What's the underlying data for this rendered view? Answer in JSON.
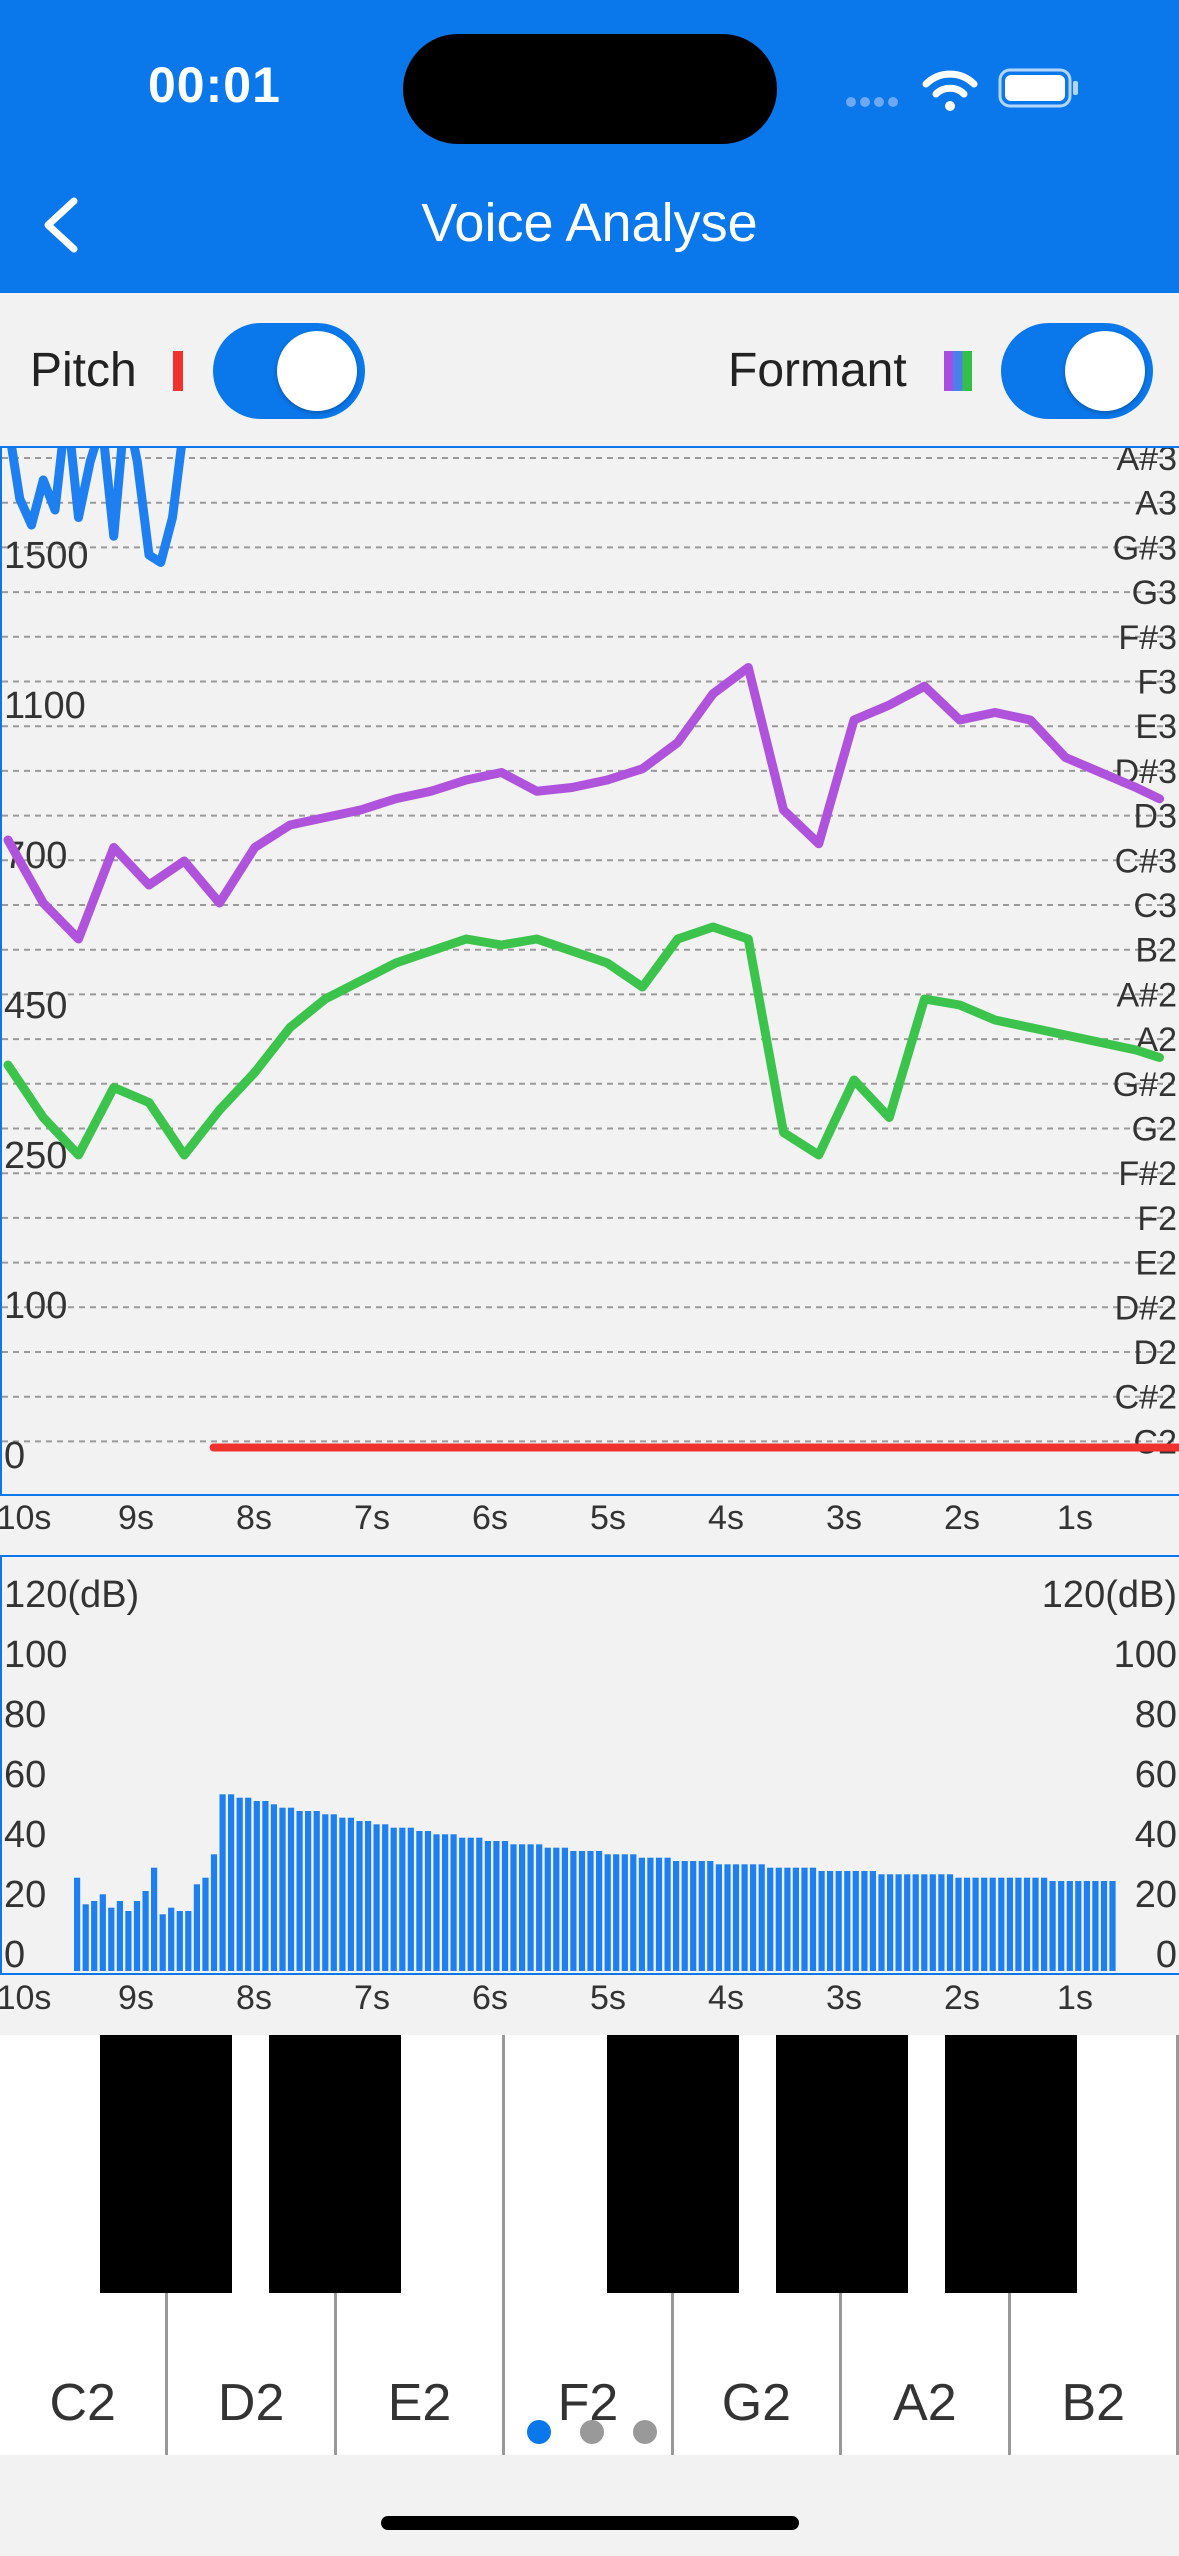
{
  "status_bar": {
    "time": "00:01"
  },
  "nav": {
    "title": "Voice Analyse",
    "back_icon": "chevron-left-icon"
  },
  "controls": {
    "pitch_label": "Pitch",
    "pitch_enabled": true,
    "pitch_color": "#f0322e",
    "formant_label": "Formant",
    "formant_enabled": true,
    "formant_colors": [
      "#a74ee0",
      "#4a80ea",
      "#34c048"
    ]
  },
  "colors": {
    "accent": "#0a77ea",
    "purple": "#b053dc",
    "green": "#3cc34c",
    "blue_line": "#1e7ff0",
    "bar": "#1e7ff0"
  },
  "chart_data": [
    {
      "type": "line",
      "y_labels_left": [
        "1500",
        "1100",
        "700",
        "450",
        "250",
        "100",
        "0"
      ],
      "note_labels_right": [
        "A#3",
        "A3",
        "G#3",
        "G3",
        "F#3",
        "F3",
        "E3",
        "D#3",
        "D3",
        "C#3",
        "C3",
        "B2",
        "A#2",
        "A2",
        "G#2",
        "G2",
        "F#2",
        "F2",
        "E2",
        "D#2",
        "D2",
        "C#2",
        "C2"
      ],
      "x_labels": [
        "10s",
        "9s",
        "8s",
        "7s",
        "6s",
        "5s",
        "4s",
        "3s",
        "2s",
        "1s"
      ],
      "series": [
        {
          "color": "#1e7ff0",
          "x": [
            0,
            0.1,
            0.2,
            0.3,
            0.4,
            0.5,
            0.6,
            0.7,
            0.8,
            0.9,
            1.0,
            1.1,
            1.2,
            1.3,
            1.4,
            1.5,
            1.6
          ],
          "y": [
            1850,
            1650,
            1580,
            1700,
            1620,
            1900,
            1600,
            1750,
            1850,
            1550,
            1900,
            1750,
            1500,
            1480,
            1600,
            1850,
            1900
          ]
        },
        {
          "color": "#b053dc",
          "x": [
            0,
            0.3,
            0.6,
            0.9,
            1.2,
            1.5,
            1.8,
            2.1,
            2.4,
            2.7,
            3.0,
            3.3,
            3.6,
            3.9,
            4.2,
            4.5,
            4.8,
            5.1,
            5.4,
            5.7,
            6.0,
            6.3,
            6.6,
            6.9,
            7.2,
            7.5,
            7.8,
            8.1,
            8.4,
            8.7,
            9.0,
            9.3,
            9.6,
            9.8
          ],
          "y": [
            740,
            620,
            560,
            720,
            650,
            690,
            620,
            720,
            780,
            800,
            820,
            850,
            870,
            900,
            920,
            870,
            880,
            900,
            930,
            1000,
            1130,
            1200,
            820,
            730,
            1060,
            1100,
            1150,
            1060,
            1080,
            1060,
            960,
            920,
            880,
            850
          ]
        },
        {
          "color": "#3cc34c",
          "x": [
            0,
            0.3,
            0.6,
            0.9,
            1.2,
            1.5,
            1.8,
            2.1,
            2.4,
            2.7,
            3.0,
            3.3,
            3.6,
            3.9,
            4.2,
            4.5,
            4.8,
            5.1,
            5.4,
            5.7,
            6.0,
            6.3,
            6.6,
            6.9,
            7.2,
            7.5,
            7.8,
            8.1,
            8.4,
            8.7,
            9.0,
            9.3,
            9.6,
            9.8
          ],
          "y": [
            370,
            300,
            250,
            340,
            320,
            250,
            310,
            360,
            420,
            460,
            490,
            520,
            540,
            560,
            550,
            560,
            540,
            520,
            480,
            560,
            580,
            560,
            280,
            250,
            350,
            300,
            460,
            450,
            430,
            420,
            410,
            400,
            390,
            380
          ]
        },
        {
          "color": "#f0322e",
          "x": [
            1.75,
            10.0
          ],
          "y": [
            5,
            5
          ]
        }
      ]
    },
    {
      "type": "bar",
      "y_labels_left": [
        "120(dB)",
        "100",
        "80",
        "60",
        "40",
        "20",
        "0"
      ],
      "y_labels_right": [
        "120(dB)",
        "100",
        "80",
        "60",
        "40",
        "20",
        "0"
      ],
      "ylim": [
        0,
        120
      ],
      "x_labels": [
        "10s",
        "9s",
        "8s",
        "7s",
        "6s",
        "5s",
        "4s",
        "3s",
        "2s",
        "1s"
      ],
      "values": [
        28,
        20,
        21,
        23,
        19,
        21,
        18,
        21,
        24,
        31,
        17,
        19,
        18,
        18,
        26,
        28,
        35,
        53,
        53,
        52,
        52,
        51,
        51,
        50,
        49,
        49,
        48,
        48,
        48,
        47,
        47,
        46,
        46,
        45,
        45,
        44,
        44,
        43,
        43,
        43,
        42,
        42,
        41,
        41,
        41,
        40,
        40,
        40,
        39,
        39,
        39,
        38,
        38,
        38,
        38,
        37,
        37,
        37,
        36,
        36,
        36,
        36,
        35,
        35,
        35,
        35,
        34,
        34,
        34,
        34,
        33,
        33,
        33,
        33,
        33,
        32,
        32,
        32,
        32,
        32,
        32,
        31,
        31,
        31,
        31,
        31,
        31,
        30,
        30,
        30,
        30,
        30,
        30,
        30,
        29,
        29,
        29,
        29,
        29,
        29,
        29,
        29,
        29,
        28,
        28,
        28,
        28,
        28,
        28,
        28,
        28,
        28,
        28,
        28,
        27,
        27,
        27,
        27,
        27,
        27,
        27,
        27
      ]
    }
  ],
  "piano": {
    "white_keys": [
      "C2",
      "D2",
      "E2",
      "F2",
      "G2",
      "A2",
      "B2"
    ]
  },
  "pager": {
    "active": 0,
    "count": 3
  }
}
